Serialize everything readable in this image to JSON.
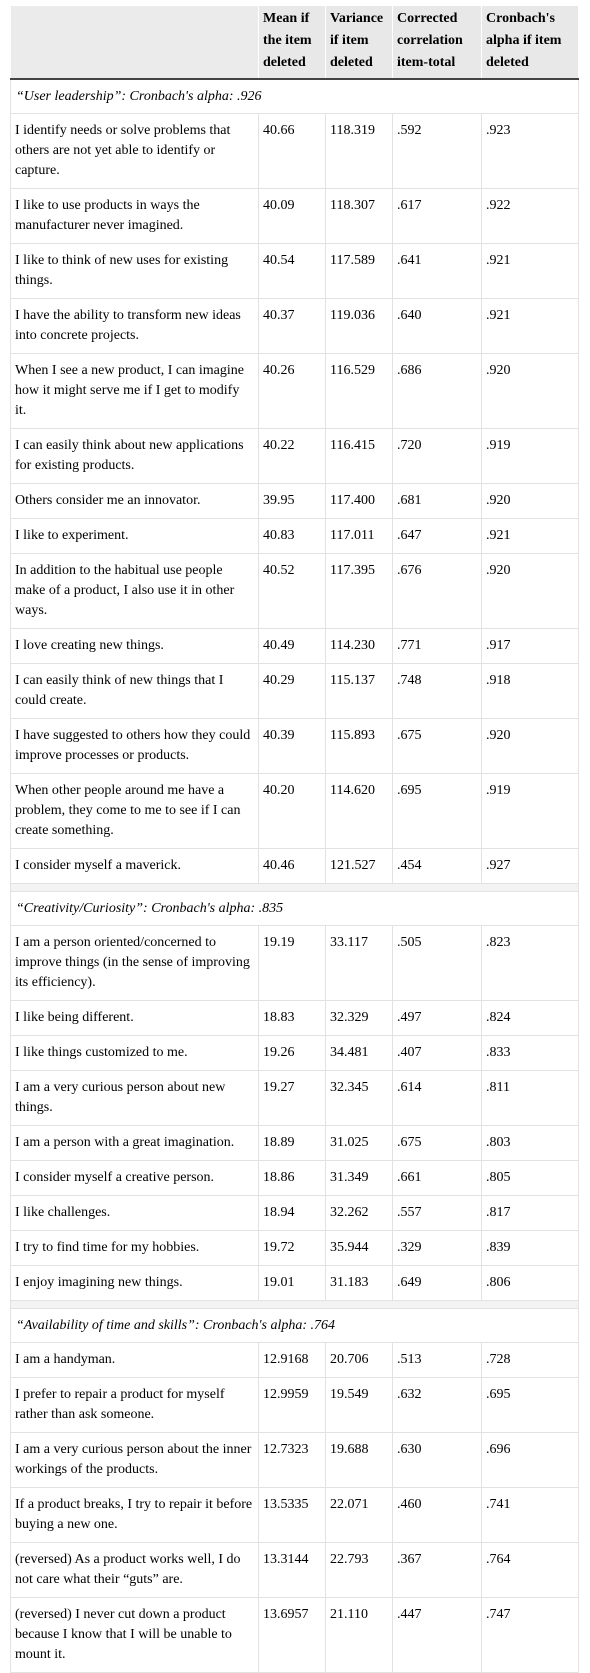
{
  "table": {
    "headers": [
      "",
      "Mean if the item deleted",
      "Variance if item deleted",
      "Corrected correlation item-total",
      "Cronbach's alpha if item deleted"
    ],
    "sections": [
      {
        "title": "“User leadership”: Cronbach's alpha: .926",
        "rows": [
          [
            "I identify needs or solve problems that others are not yet able to identify or capture.",
            "40.66",
            "118.319",
            ".592",
            ".923"
          ],
          [
            "I like to use products in ways the manufacturer never imagined.",
            "40.09",
            "118.307",
            ".617",
            ".922"
          ],
          [
            "I like to think of new uses for existing things.",
            "40.54",
            "117.589",
            ".641",
            ".921"
          ],
          [
            "I have the ability to transform new ideas into concrete projects.",
            "40.37",
            "119.036",
            ".640",
            ".921"
          ],
          [
            "When I see a new product, I can imagine how it might serve me if I get to modify it.",
            "40.26",
            "116.529",
            ".686",
            ".920"
          ],
          [
            "I can easily think about new applications for existing products.",
            "40.22",
            "116.415",
            ".720",
            ".919"
          ],
          [
            "Others consider me an innovator.",
            "39.95",
            "117.400",
            ".681",
            ".920"
          ],
          [
            "I like to experiment.",
            "40.83",
            "117.011",
            ".647",
            ".921"
          ],
          [
            "In addition to the habitual use people make of a product, I also use it in other ways.",
            "40.52",
            "117.395",
            ".676",
            ".920"
          ],
          [
            "I love creating new things.",
            "40.49",
            "114.230",
            ".771",
            ".917"
          ],
          [
            "I can easily think of new things that I could create.",
            "40.29",
            "115.137",
            ".748",
            ".918"
          ],
          [
            "I have suggested to others how they could improve processes or products.",
            "40.39",
            "115.893",
            ".675",
            ".920"
          ],
          [
            "When other people around me have a problem, they come to me to see if I can create something.",
            "40.20",
            "114.620",
            ".695",
            ".919"
          ],
          [
            "I consider myself a maverick.",
            "40.46",
            "121.527",
            ".454",
            ".927"
          ]
        ]
      },
      {
        "title": "“Creativity/Curiosity”: Cronbach's alpha: .835",
        "rows": [
          [
            "I am a person oriented/concerned to improve things (in the sense of improving its efficiency).",
            "19.19",
            "33.117",
            ".505",
            ".823"
          ],
          [
            "I like being different.",
            "18.83",
            "32.329",
            ".497",
            ".824"
          ],
          [
            "I like things customized to me.",
            "19.26",
            "34.481",
            ".407",
            ".833"
          ],
          [
            "I am a very curious person about new things.",
            "19.27",
            "32.345",
            ".614",
            ".811"
          ],
          [
            "I am a person with a great imagination.",
            "18.89",
            "31.025",
            ".675",
            ".803"
          ],
          [
            "I consider myself a creative person.",
            "18.86",
            "31.349",
            ".661",
            ".805"
          ],
          [
            "I like challenges.",
            "18.94",
            "32.262",
            ".557",
            ".817"
          ],
          [
            "I try to find time for my hobbies.",
            "19.72",
            "35.944",
            ".329",
            ".839"
          ],
          [
            "I enjoy imagining new things.",
            "19.01",
            "31.183",
            ".649",
            ".806"
          ]
        ]
      },
      {
        "title": "“Availability of time and skills”: Cronbach's alpha: .764",
        "rows": [
          [
            "I am a handyman.",
            "12.9168",
            "20.706",
            ".513",
            ".728"
          ],
          [
            "I prefer to repair a product for myself rather than ask someone.",
            "12.9959",
            "19.549",
            ".632",
            ".695"
          ],
          [
            "I am a very curious person about the inner workings of the products.",
            "12.7323",
            "19.688",
            ".630",
            ".696"
          ],
          [
            "If a product breaks, I try to repair it before buying a new one.",
            "13.5335",
            "22.071",
            ".460",
            ".741"
          ],
          [
            "(reversed) As a product works well, I do not care what their “guts” are.",
            "13.3144",
            "22.793",
            ".367",
            ".764"
          ],
          [
            "(reversed) I never cut down a product because I know that I will be unable to mount it.",
            "13.6957",
            "21.110",
            ".447",
            ".747"
          ]
        ]
      }
    ]
  }
}
